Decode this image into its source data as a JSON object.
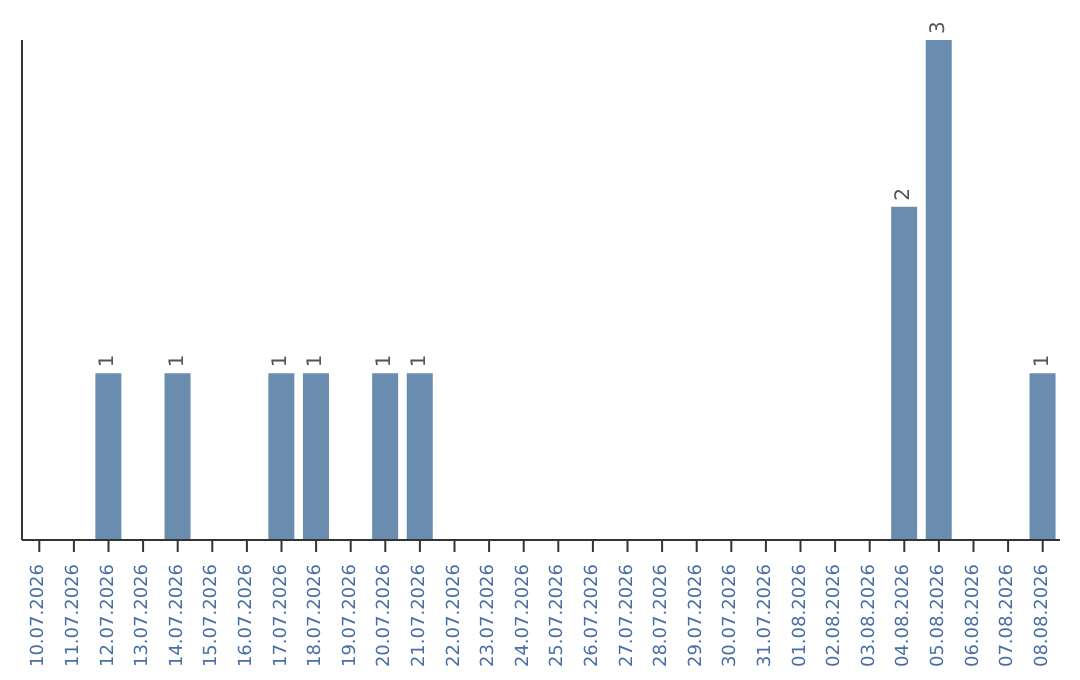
{
  "chart_data": {
    "type": "bar",
    "categories": [
      "10.07.2026",
      "11.07.2026",
      "12.07.2026",
      "13.07.2026",
      "14.07.2026",
      "15.07.2026",
      "16.07.2026",
      "17.07.2026",
      "18.07.2026",
      "19.07.2026",
      "20.07.2026",
      "21.07.2026",
      "22.07.2026",
      "23.07.2026",
      "24.07.2026",
      "25.07.2026",
      "26.07.2026",
      "27.07.2026",
      "28.07.2026",
      "29.07.2026",
      "30.07.2026",
      "31.07.2026",
      "01.08.2026",
      "02.08.2026",
      "03.08.2026",
      "04.08.2026",
      "05.08.2026",
      "06.08.2026",
      "07.08.2026",
      "08.08.2026"
    ],
    "values": [
      0,
      0,
      1,
      0,
      1,
      0,
      0,
      1,
      1,
      0,
      1,
      1,
      0,
      0,
      0,
      0,
      0,
      0,
      0,
      0,
      0,
      0,
      0,
      0,
      0,
      2,
      3,
      0,
      0,
      1
    ],
    "value_labels": [
      null,
      null,
      "1",
      null,
      "1",
      null,
      null,
      "1",
      "1",
      null,
      "1",
      "1",
      null,
      null,
      null,
      null,
      null,
      null,
      null,
      null,
      null,
      null,
      null,
      null,
      null,
      "2",
      "3",
      null,
      null,
      "1"
    ],
    "color": "#6a8caf",
    "grid": false,
    "legend": false
  }
}
